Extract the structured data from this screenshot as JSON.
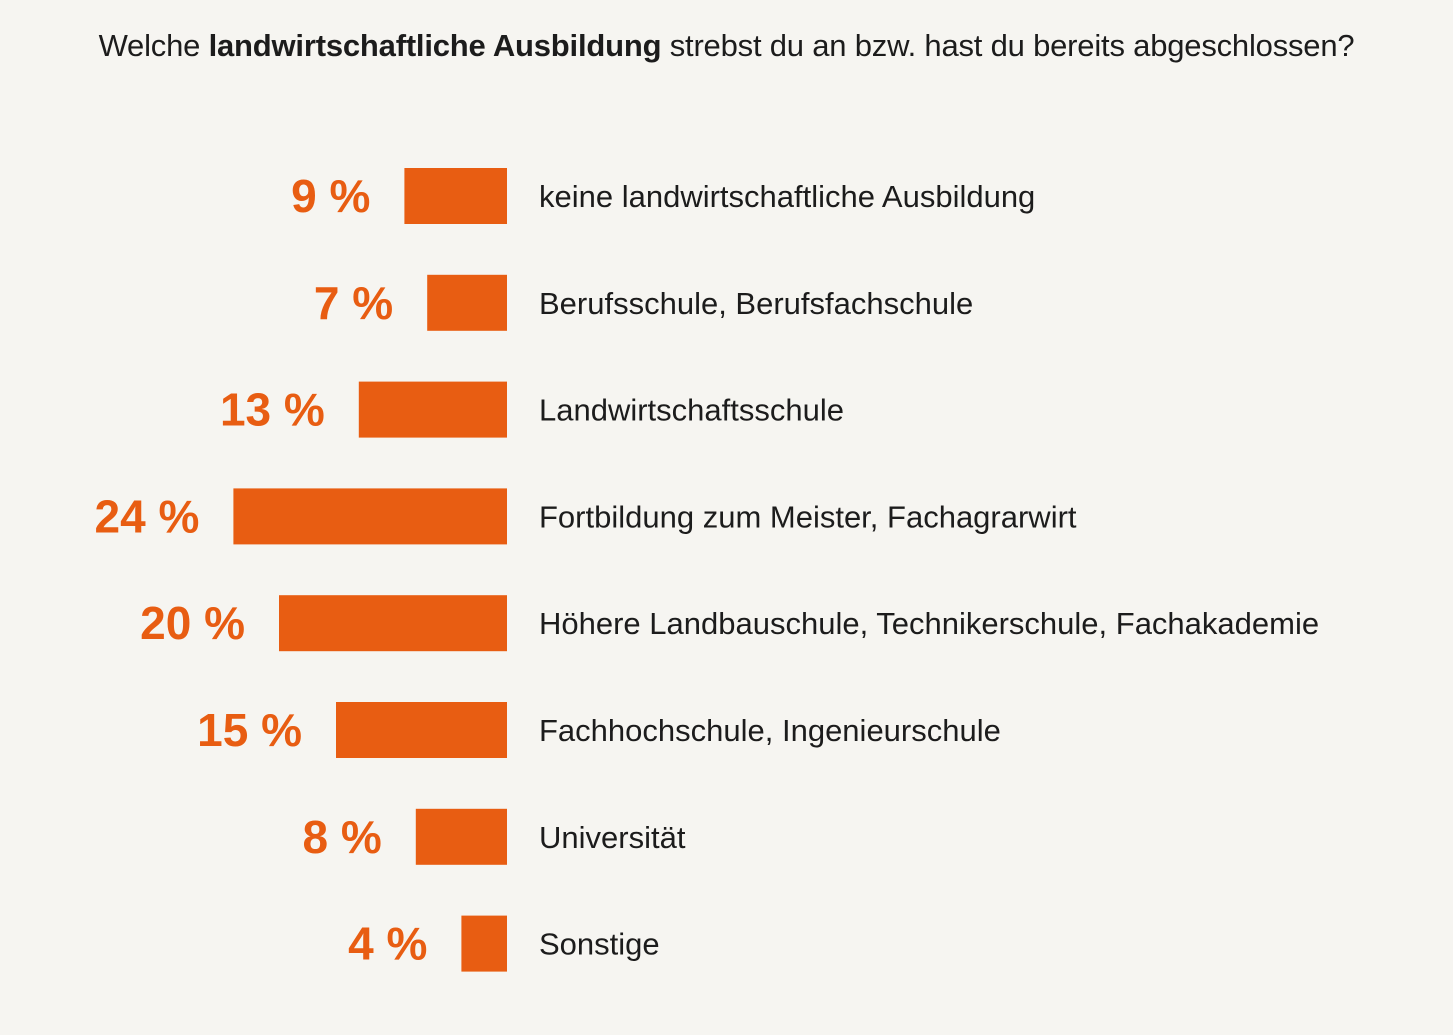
{
  "title": {
    "prefix": "Welche ",
    "bold": "landwirtschaftliche Ausbildung",
    "suffix": " strebst du an bzw. hast du bereits abgeschlossen?"
  },
  "colors": {
    "bar": "#e85d12",
    "text": "#1c1c1c",
    "background": "#f6f5f1"
  },
  "chart_data": {
    "type": "bar",
    "orientation": "horizontal",
    "title": "Welche landwirtschaftliche Ausbildung strebst du an bzw. hast du bereits abgeschlossen?",
    "unit": "%",
    "grid": false,
    "legend": "none",
    "categories": [
      "keine landwirtschaftliche Ausbildung",
      "Berufsschule, Berufsfachschule",
      "Landwirtschaftsschule",
      "Fortbildung zum Meister, Fachagrarwirt",
      "Höhere Landbauschule, Technikerschule, Fachakademie",
      "Fachhochschule, Ingenieurschule",
      "Universität",
      "Sonstige"
    ],
    "values": [
      9,
      7,
      13,
      24,
      20,
      15,
      8,
      4
    ],
    "value_labels": [
      "9 %",
      "7 %",
      "13 %",
      "24 %",
      "20 %",
      "15 %",
      "8 %",
      "4 %"
    ]
  }
}
